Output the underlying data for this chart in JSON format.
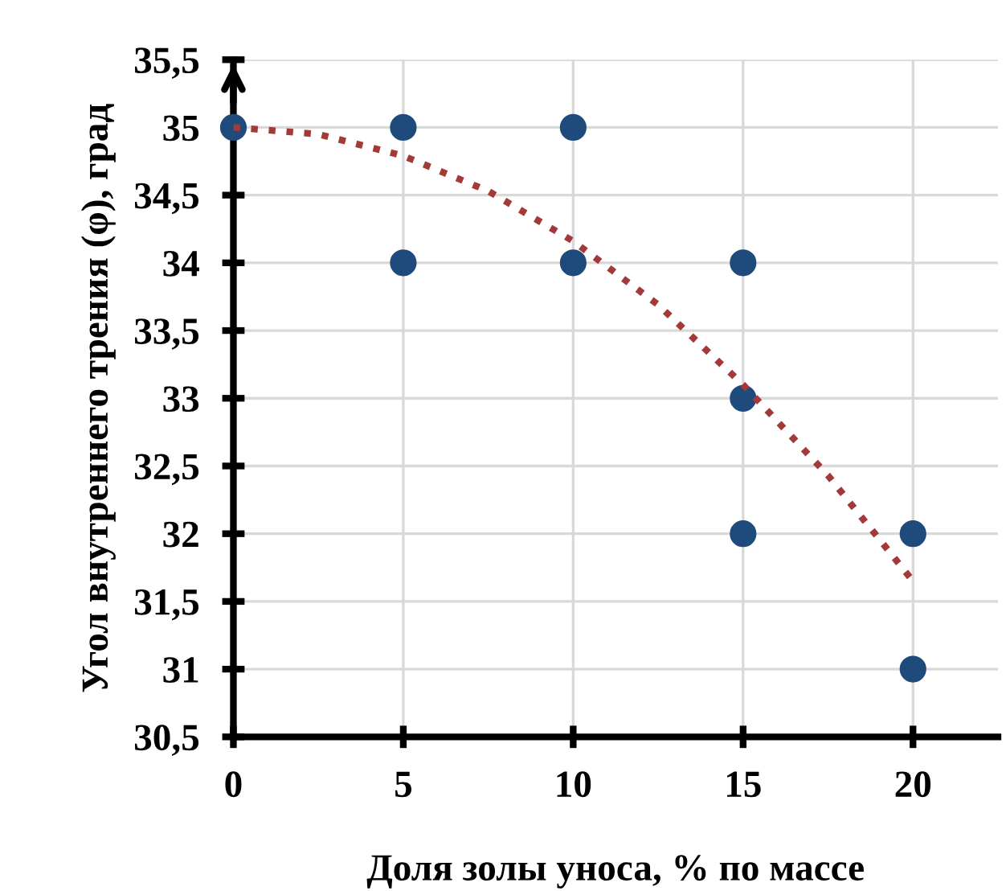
{
  "chart_data": {
    "type": "scatter",
    "xlabel": "Доля золы уноса, % по массе",
    "ylabel": "Угол внутреннего трения (φ), град",
    "series": [
      {
        "color": "#1f4a7c",
        "marker": "circle",
        "x": [
          0,
          5,
          5,
          10,
          10,
          15,
          15,
          15,
          20,
          20
        ],
        "values": [
          35,
          35,
          34,
          35,
          34,
          34,
          33,
          32,
          32,
          31
        ]
      },
      {
        "type": "line",
        "color": "#a33a3a",
        "line_style": "dotted",
        "marker": "none",
        "x": [
          0,
          2.5,
          5,
          7.5,
          10,
          12.5,
          15,
          17.5,
          20
        ],
        "values": [
          35,
          34.95,
          34.79,
          34.53,
          34.16,
          33.69,
          33.1,
          32.43,
          31.65
        ]
      }
    ],
    "xlim": [
      0,
      22.5
    ],
    "xticks": [
      0,
      5,
      10,
      15,
      20
    ],
    "ylim": [
      30.5,
      35.5
    ],
    "yticks": [
      {
        "value": 30.5,
        "label": "30,5"
      },
      31,
      {
        "value": 31.5,
        "label": "31,5"
      },
      32,
      {
        "value": 32.5,
        "label": "32,5"
      },
      33,
      {
        "value": 33.5,
        "label": "33,5"
      },
      34,
      {
        "value": 34.5,
        "label": "34,5"
      },
      35,
      {
        "value": 35.5,
        "label": "35,5"
      }
    ],
    "grid": true,
    "legend": false
  }
}
